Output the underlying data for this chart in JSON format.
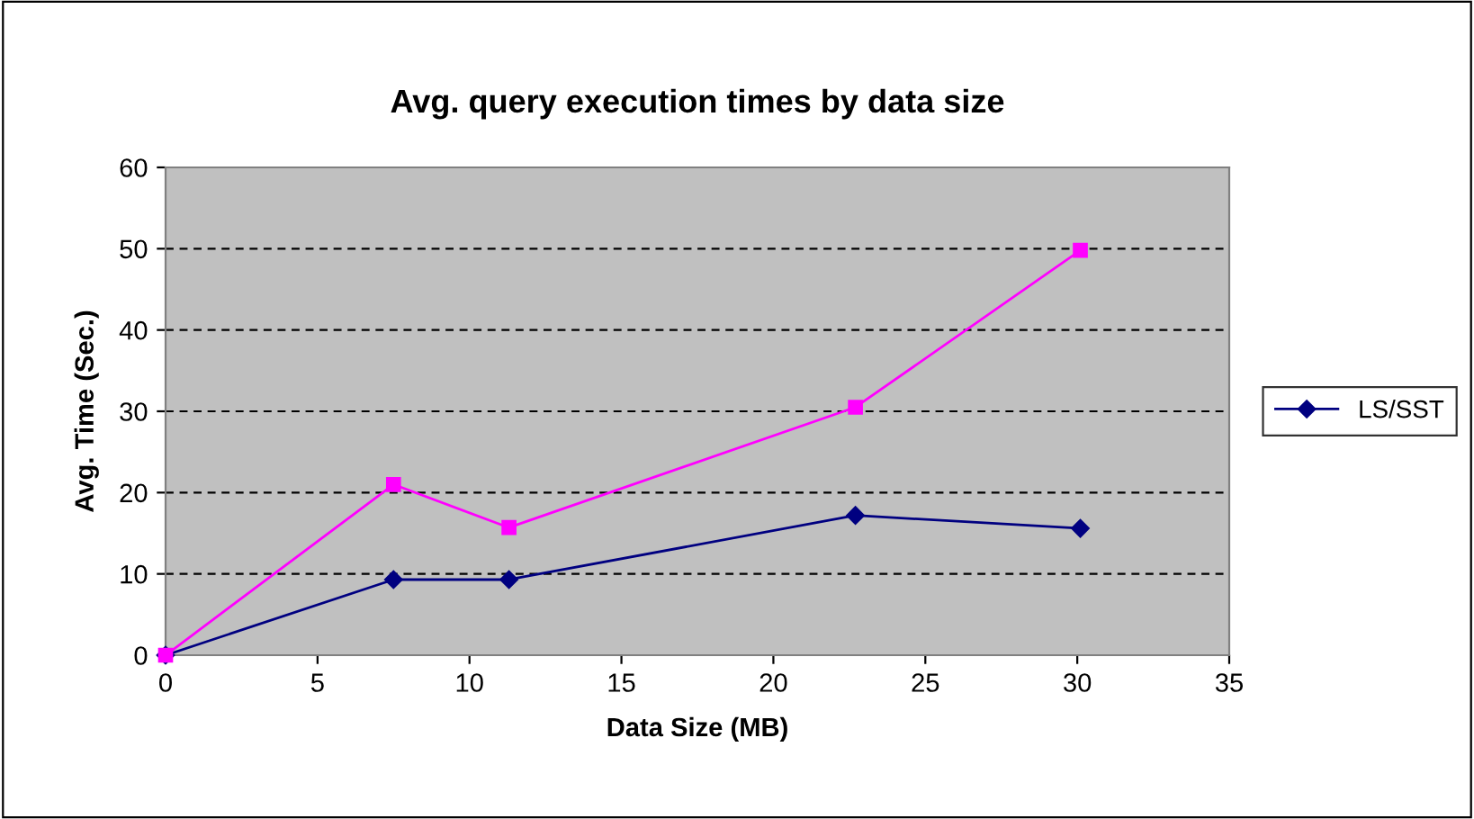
{
  "chart_data": {
    "type": "line",
    "title": "Avg. query execution times by data size",
    "xlabel": "Data Size (MB)",
    "ylabel": "Avg. Time (Sec.)",
    "x": [
      0,
      7.5,
      11.3,
      22.7,
      30.1
    ],
    "series": [
      {
        "name": "LS/SST",
        "color": "#000080",
        "marker": "diamond",
        "values": [
          0,
          9.3,
          9.3,
          17.2,
          15.6
        ]
      },
      {
        "color": "#ff00ff",
        "marker": "square",
        "values": [
          0,
          21.0,
          15.7,
          30.5,
          49.8
        ]
      }
    ],
    "xlim": [
      0,
      35
    ],
    "xticks": [
      0,
      5,
      10,
      15,
      20,
      25,
      30,
      35
    ],
    "ylim": [
      0,
      60
    ],
    "yticks": [
      0,
      10,
      20,
      30,
      40,
      50,
      60
    ],
    "grid": "y",
    "legend": "right",
    "line_style": "solid"
  }
}
